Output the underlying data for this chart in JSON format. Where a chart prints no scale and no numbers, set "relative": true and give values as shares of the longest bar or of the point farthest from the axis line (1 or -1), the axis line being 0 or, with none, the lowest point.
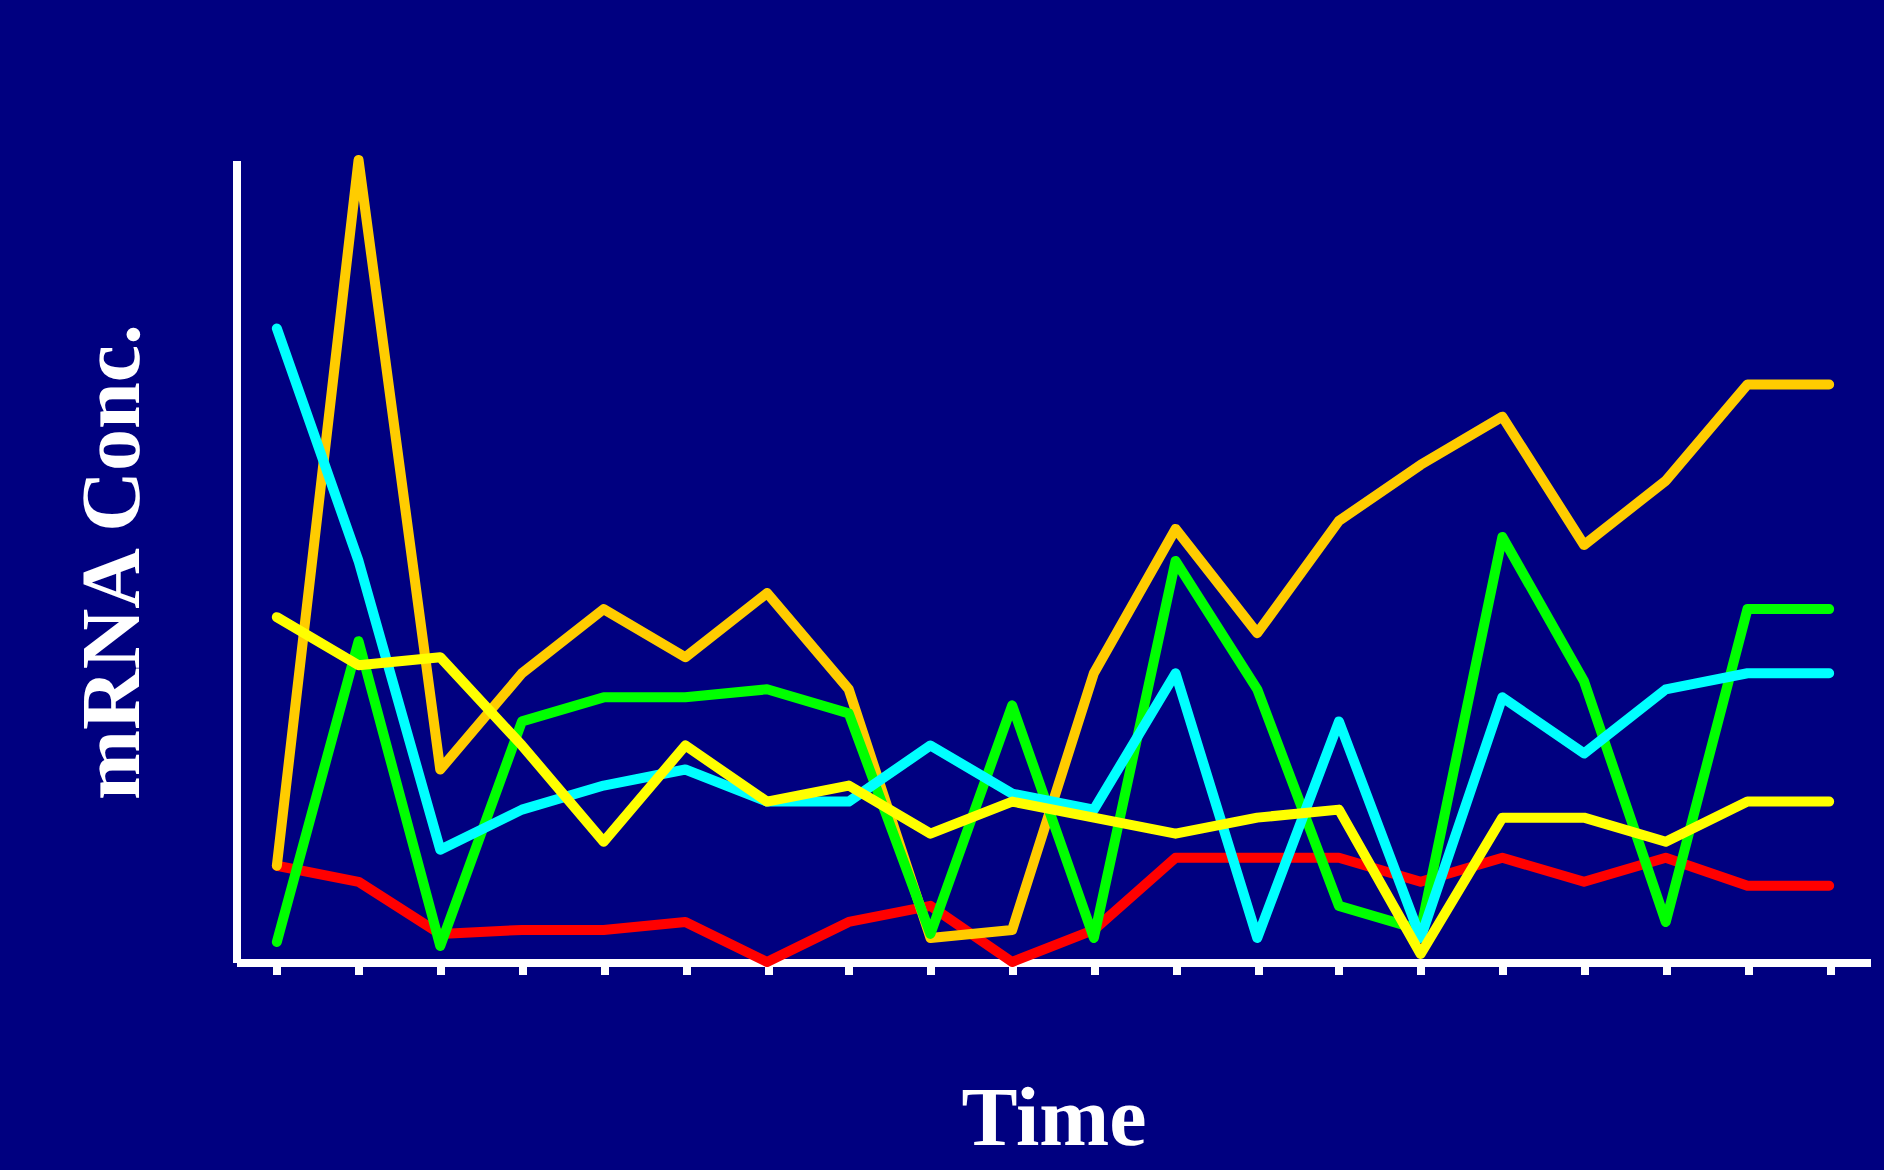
{
  "chart_data": {
    "type": "line",
    "relative": true,
    "xlabel": "Time",
    "ylabel": "mRNA Conc.",
    "categories": [
      null,
      null,
      null,
      null,
      null,
      null,
      null,
      null,
      null,
      null,
      null,
      null,
      null,
      null,
      null,
      null,
      null,
      null,
      null,
      null
    ],
    "series": [
      {
        "color": "#ff0000",
        "values": [
          0.12,
          0.1,
          0.035,
          0.04,
          0.04,
          0.05,
          0.0,
          0.05,
          0.07,
          0.0,
          0.04,
          0.13,
          0.13,
          0.13,
          0.1,
          0.13,
          0.1,
          0.13,
          0.095,
          0.095
        ]
      },
      {
        "color": "#ffcc00",
        "values": [
          0.12,
          1.0,
          0.24,
          0.36,
          0.44,
          0.38,
          0.46,
          0.34,
          0.03,
          0.04,
          0.36,
          0.54,
          0.41,
          0.55,
          0.62,
          0.68,
          0.52,
          0.6,
          0.72,
          0.72
        ]
      },
      {
        "color": "#00ff00",
        "values": [
          0.025,
          0.4,
          0.02,
          0.3,
          0.33,
          0.33,
          0.34,
          0.31,
          0.035,
          0.32,
          0.03,
          0.5,
          0.34,
          0.07,
          0.04,
          0.53,
          0.35,
          0.05,
          0.44,
          0.44
        ]
      },
      {
        "color": "#00ffff",
        "values": [
          0.79,
          0.5,
          0.14,
          0.19,
          0.22,
          0.24,
          0.2,
          0.2,
          0.27,
          0.21,
          0.19,
          0.36,
          0.03,
          0.3,
          0.03,
          0.33,
          0.26,
          0.34,
          0.36,
          0.36
        ]
      },
      {
        "color": "#ffff00",
        "values": [
          0.43,
          0.37,
          0.38,
          0.27,
          0.15,
          0.27,
          0.2,
          0.22,
          0.16,
          0.2,
          0.18,
          0.16,
          0.18,
          0.19,
          0.01,
          0.18,
          0.18,
          0.15,
          0.2,
          0.2
        ]
      }
    ]
  }
}
